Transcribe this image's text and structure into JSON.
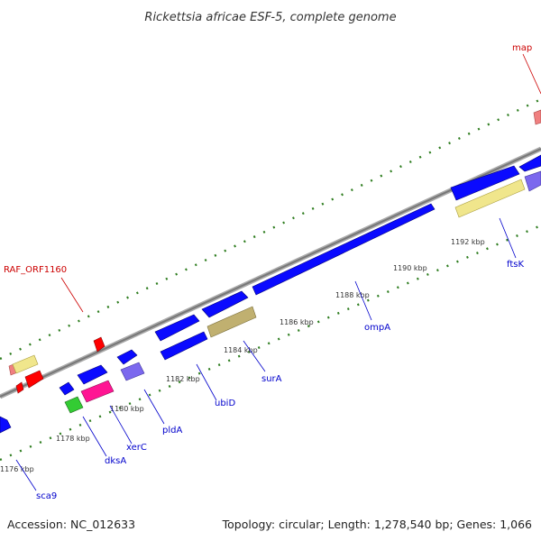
{
  "title": "Rickettsia africae ESF-5, complete genome",
  "accession": "Accession: NC_012633",
  "summary": "Topology: circular; Length: 1,278,540 bp; Genes: 1,066",
  "kbp_labels": [
    "1176 kbp",
    "1178 kbp",
    "1180 kbp",
    "1182 kbp",
    "1184 kbp",
    "1186 kbp",
    "1188 kbp",
    "1190 kbp",
    "1192 kbp"
  ],
  "gene_labels": [
    {
      "name": "map",
      "color": "#cc0000"
    },
    {
      "name": "RAF_ORF1160",
      "color": "#cc0000"
    },
    {
      "name": "ftsK",
      "color": "#0000cc"
    },
    {
      "name": "ompA",
      "color": "#0000cc"
    },
    {
      "name": "surA",
      "color": "#0000cc"
    },
    {
      "name": "ubiD",
      "color": "#0000cc"
    },
    {
      "name": "pldA",
      "color": "#0000cc"
    },
    {
      "name": "xerC",
      "color": "#0000cc"
    },
    {
      "name": "dksA",
      "color": "#0000cc"
    },
    {
      "name": "sca9",
      "color": "#0000cc"
    }
  ],
  "colors": {
    "backbone": "#888888",
    "tick": "#2e7d1f",
    "forward_gene": "#0a0aff",
    "label_red": "#cc0000",
    "label_blue": "#0000cc"
  }
}
